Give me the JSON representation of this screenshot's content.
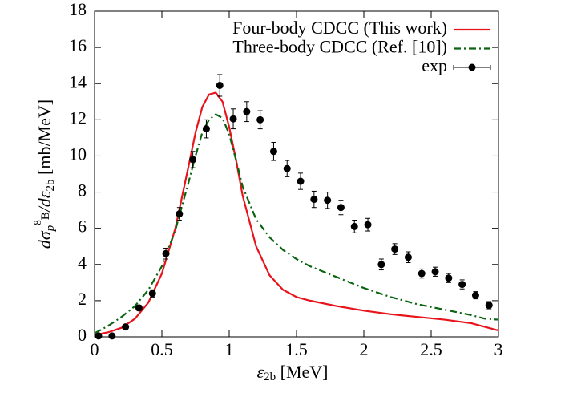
{
  "chart_data": {
    "type": "line",
    "xlabel": [
      "ε",
      "2b",
      " [MeV]"
    ],
    "ylabel": [
      "dσ",
      "p",
      "8",
      "B",
      "/dε",
      "2b",
      " [mb/MeV]"
    ],
    "xlim": [
      0,
      3
    ],
    "ylim": [
      0,
      18
    ],
    "xticks": [
      0,
      0.5,
      1,
      1.5,
      2,
      2.5,
      3
    ],
    "yticks": [
      0,
      2,
      4,
      6,
      8,
      10,
      12,
      14,
      16,
      18
    ],
    "legend": "top-right",
    "series": [
      {
        "name": "Four-body CDCC (This work)",
        "color": "#e8141c",
        "dash": "solid",
        "x": [
          0,
          0.1,
          0.2,
          0.3,
          0.4,
          0.5,
          0.6,
          0.7,
          0.75,
          0.8,
          0.85,
          0.9,
          0.95,
          1.0,
          1.05,
          1.1,
          1.2,
          1.3,
          1.4,
          1.5,
          1.6,
          1.8,
          2.0,
          2.2,
          2.4,
          2.6,
          2.8,
          2.9,
          3.0
        ],
        "values": [
          0.1,
          0.25,
          0.5,
          1.0,
          1.9,
          3.5,
          6.0,
          9.5,
          11.3,
          12.7,
          13.4,
          13.5,
          13.0,
          11.6,
          9.8,
          7.8,
          5.0,
          3.4,
          2.6,
          2.2,
          2.0,
          1.7,
          1.45,
          1.25,
          1.1,
          0.95,
          0.75,
          0.55,
          0.35
        ]
      },
      {
        "name": "Three-body CDCC (Ref. [10])",
        "color": "#0a6410",
        "dash": "dashdot",
        "x": [
          0,
          0.1,
          0.2,
          0.3,
          0.4,
          0.5,
          0.6,
          0.7,
          0.75,
          0.8,
          0.85,
          0.9,
          0.95,
          1.0,
          1.05,
          1.1,
          1.2,
          1.3,
          1.4,
          1.5,
          1.6,
          1.8,
          2.0,
          2.2,
          2.4,
          2.6,
          2.8,
          2.9,
          3.0
        ],
        "values": [
          0.2,
          0.6,
          1.1,
          1.7,
          2.6,
          3.9,
          5.9,
          8.6,
          10.0,
          11.3,
          12.0,
          12.3,
          12.1,
          11.2,
          9.8,
          8.3,
          6.5,
          5.5,
          4.8,
          4.3,
          3.9,
          3.3,
          2.7,
          2.2,
          1.8,
          1.5,
          1.2,
          1.0,
          0.95
        ]
      },
      {
        "name": "exp",
        "color": "#000000",
        "type": "scatter",
        "x": [
          0.03,
          0.13,
          0.23,
          0.33,
          0.43,
          0.53,
          0.63,
          0.73,
          0.83,
          0.93,
          1.03,
          1.13,
          1.23,
          1.33,
          1.43,
          1.53,
          1.63,
          1.73,
          1.83,
          1.93,
          2.03,
          2.13,
          2.23,
          2.33,
          2.43,
          2.53,
          2.63,
          2.73,
          2.83,
          2.93
        ],
        "values": [
          0.05,
          0.05,
          0.55,
          1.6,
          2.4,
          4.6,
          6.8,
          9.8,
          11.5,
          13.9,
          12.05,
          12.45,
          12.0,
          10.25,
          9.3,
          8.6,
          7.6,
          7.55,
          7.15,
          6.1,
          6.2,
          4.0,
          4.85,
          4.4,
          3.5,
          3.6,
          3.25,
          2.9,
          2.3,
          1.75
        ],
        "errors": [
          0.1,
          0.1,
          0.1,
          0.15,
          0.2,
          0.3,
          0.35,
          0.45,
          0.5,
          0.6,
          0.55,
          0.55,
          0.5,
          0.5,
          0.45,
          0.45,
          0.45,
          0.45,
          0.4,
          0.35,
          0.35,
          0.3,
          0.3,
          0.3,
          0.25,
          0.25,
          0.25,
          0.25,
          0.2,
          0.2
        ]
      }
    ]
  }
}
